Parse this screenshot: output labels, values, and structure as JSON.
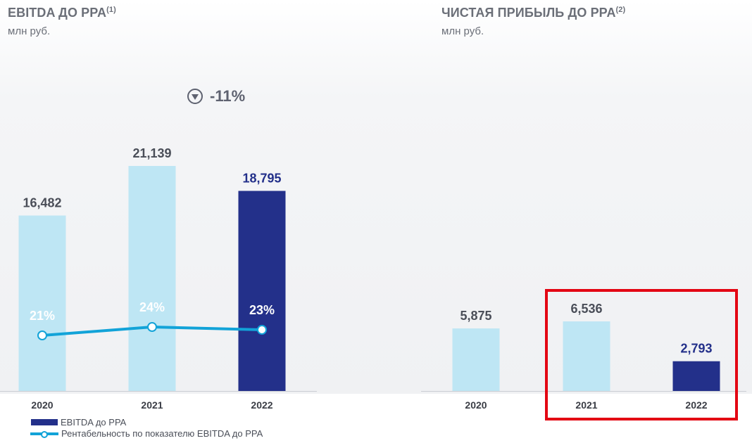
{
  "left": {
    "title": "EBITDA ДО PPA",
    "title_note": "(1)",
    "subtitle": "млн руб.",
    "change": "-11%"
  },
  "right": {
    "title": "ЧИСТАЯ ПРИБЫЛЬ ДО PPA",
    "title_note": "(2)",
    "subtitle": "млн руб."
  },
  "legend": {
    "bar": "EBITDA до PPA",
    "line": "Рентабельность по показателю EBITDA до PPA"
  },
  "colors": {
    "light_bar": "#bee6f4",
    "dark_bar": "#23308a",
    "line": "#12a3d8",
    "highlight": "#e30613",
    "label": "#4a4e58"
  },
  "chart_data": [
    {
      "type": "bar",
      "title": "EBITDA ДО PPA",
      "categories": [
        "2020",
        "2021",
        "2022"
      ],
      "series": [
        {
          "name": "EBITDA до PPA",
          "values": [
            16482,
            21139,
            18795
          ],
          "labels": [
            "16,482",
            "21,139",
            "18,795"
          ]
        },
        {
          "name": "Рентабельность по показателю EBITDA до PPA",
          "type": "line",
          "values": [
            21,
            24,
            23
          ],
          "labels": [
            "21%",
            "24%",
            "23%"
          ],
          "unit": "%"
        }
      ],
      "ylim": [
        0,
        27000
      ],
      "grid": false,
      "legend": "bottom-left"
    },
    {
      "type": "bar",
      "title": "ЧИСТАЯ ПРИБЫЛЬ ДО PPA",
      "categories": [
        "2020",
        "2021",
        "2022"
      ],
      "values": [
        5875,
        6536,
        2793
      ],
      "labels": [
        "5,875",
        "6,536",
        "2,793"
      ],
      "ylim": [
        0,
        27000
      ],
      "grid": false
    }
  ]
}
